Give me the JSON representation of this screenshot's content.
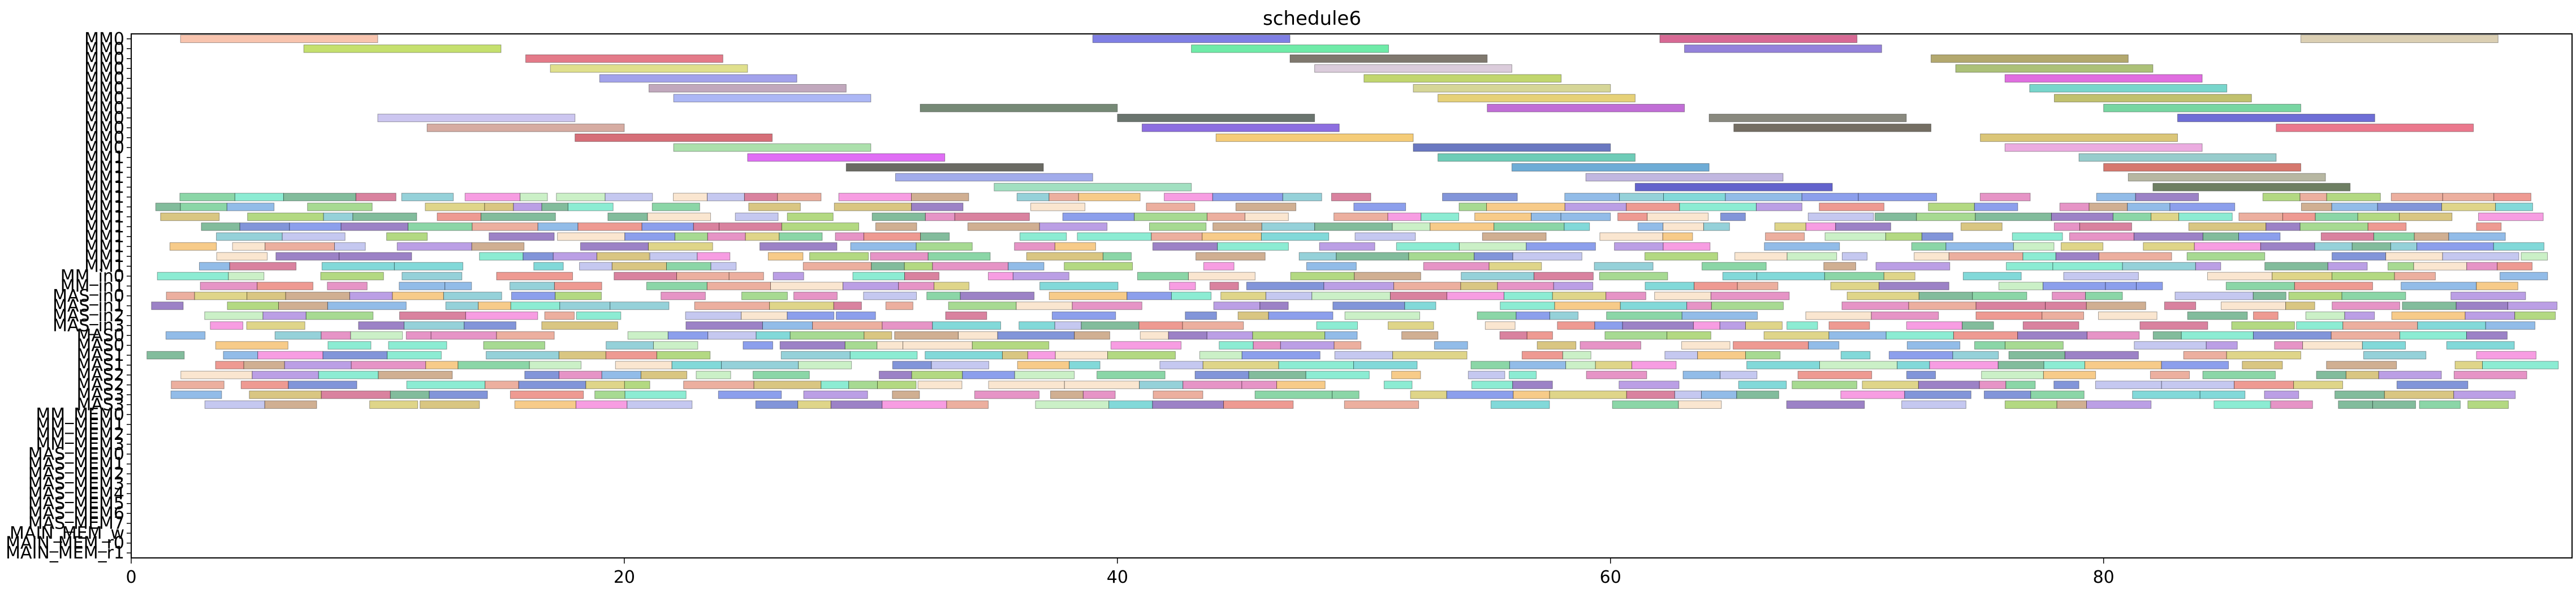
{
  "chart_data": {
    "type": "gantt",
    "title": "schedule6",
    "xlabel": "",
    "ylabel": "",
    "xlim": [
      0,
      99
    ],
    "xticks": [
      0,
      20,
      40,
      60,
      80
    ],
    "grid": false,
    "rows": [
      "MM0",
      "MM0",
      "MM0",
      "MM0",
      "MM0",
      "MM0",
      "MM0",
      "MM0",
      "MM0",
      "MM0",
      "MM0",
      "MM0",
      "MM1",
      "MM1",
      "MM1",
      "MM1",
      "MM1",
      "MM1",
      "MM1",
      "MM1",
      "MM1",
      "MM1",
      "MM1",
      "MM1",
      "MM_in0",
      "MM_in1",
      "MAS_in0",
      "MAS_in1",
      "MAS_in2",
      "MAS_in3",
      "MAS0",
      "MAS0",
      "MAS1",
      "MAS1",
      "MAS2",
      "MAS2",
      "MAS3",
      "MAS3",
      "MM_MEM0",
      "MM_MEM1",
      "MM_MEM2",
      "MM_MEM3",
      "MAS_MEM0",
      "MAS_MEM1",
      "MAS_MEM2",
      "MAS_MEM3",
      "MAS_MEM4",
      "MAS_MEM5",
      "MAS_MEM6",
      "MAS_MEM7",
      "MAIN_MEM_w",
      "MAIN_MEM_r0",
      "MAIN_MEM_r1"
    ],
    "bars": [
      {
        "row": 0,
        "start": 2,
        "end": 10,
        "color": "#f4a582"
      },
      {
        "row": 0,
        "start": 39,
        "end": 47,
        "color": "#3a3ad6"
      },
      {
        "row": 0,
        "start": 62,
        "end": 70,
        "color": "#c2185b"
      },
      {
        "row": 0,
        "start": 88,
        "end": 96,
        "color": "#c8b68a"
      },
      {
        "row": 1,
        "start": 7,
        "end": 15,
        "color": "#a6d020"
      },
      {
        "row": 1,
        "start": 43,
        "end": 51,
        "color": "#22e07a"
      },
      {
        "row": 1,
        "start": 63,
        "end": 71,
        "color": "#5b3fc8"
      },
      {
        "row": 2,
        "start": 16,
        "end": 24,
        "color": "#d6334a"
      },
      {
        "row": 2,
        "start": 47,
        "end": 55,
        "color": "#3b3020"
      },
      {
        "row": 2,
        "start": 73,
        "end": 81,
        "color": "#8a7a20"
      },
      {
        "row": 3,
        "start": 17,
        "end": 25,
        "color": "#cfcf50"
      },
      {
        "row": 3,
        "start": 48,
        "end": 56,
        "color": "#c8b0c8"
      },
      {
        "row": 3,
        "start": 74,
        "end": 82,
        "color": "#7fa030"
      },
      {
        "row": 4,
        "start": 19,
        "end": 27,
        "color": "#7070e0"
      },
      {
        "row": 4,
        "start": 50,
        "end": 58,
        "color": "#a0c020"
      },
      {
        "row": 4,
        "start": 76,
        "end": 84,
        "color": "#d020d0"
      },
      {
        "row": 5,
        "start": 21,
        "end": 29,
        "color": "#a07a9a"
      },
      {
        "row": 5,
        "start": 52,
        "end": 60,
        "color": "#c0c060"
      },
      {
        "row": 5,
        "start": 77,
        "end": 85,
        "color": "#30c0b0"
      },
      {
        "row": 6,
        "start": 22,
        "end": 30,
        "color": "#8090f0"
      },
      {
        "row": 6,
        "start": 53,
        "end": 61,
        "color": "#d8b830"
      },
      {
        "row": 6,
        "start": 78,
        "end": 86,
        "color": "#a0a020"
      },
      {
        "row": 7,
        "start": 32,
        "end": 40,
        "color": "#2d4a2d"
      },
      {
        "row": 7,
        "start": 55,
        "end": 63,
        "color": "#a020c0"
      },
      {
        "row": 7,
        "start": 80,
        "end": 88,
        "color": "#30c070"
      },
      {
        "row": 8,
        "start": 10,
        "end": 18,
        "color": "#b0a8e8"
      },
      {
        "row": 8,
        "start": 40,
        "end": 48,
        "color": "#1a2a20"
      },
      {
        "row": 8,
        "start": 64,
        "end": 72,
        "color": "#4a4a3a"
      },
      {
        "row": 8,
        "start": 83,
        "end": 91,
        "color": "#2020c0"
      },
      {
        "row": 9,
        "start": 12,
        "end": 20,
        "color": "#c08070"
      },
      {
        "row": 9,
        "start": 41,
        "end": 49,
        "color": "#5020d0"
      },
      {
        "row": 9,
        "start": 65,
        "end": 73,
        "color": "#2a2010"
      },
      {
        "row": 9,
        "start": 87,
        "end": 95,
        "color": "#e03050"
      },
      {
        "row": 10,
        "start": 18,
        "end": 26,
        "color": "#c02030"
      },
      {
        "row": 10,
        "start": 44,
        "end": 52,
        "color": "#f0b030"
      },
      {
        "row": 10,
        "start": 75,
        "end": 83,
        "color": "#c8a830"
      },
      {
        "row": 11,
        "start": 22,
        "end": 30,
        "color": "#80d080"
      },
      {
        "row": 11,
        "start": 52,
        "end": 60,
        "color": "#1a30a0"
      },
      {
        "row": 11,
        "start": 76,
        "end": 84,
        "color": "#e080d0"
      },
      {
        "row": 12,
        "start": 25,
        "end": 33,
        "color": "#d020f0"
      },
      {
        "row": 12,
        "start": 53,
        "end": 61,
        "color": "#20b090"
      },
      {
        "row": 12,
        "start": 79,
        "end": 87,
        "color": "#60b0b0"
      },
      {
        "row": 13,
        "start": 29,
        "end": 37,
        "color": "#1a1a10"
      },
      {
        "row": 13,
        "start": 56,
        "end": 64,
        "color": "#2080c0"
      },
      {
        "row": 13,
        "start": 80,
        "end": 88,
        "color": "#c03020"
      },
      {
        "row": 14,
        "start": 31,
        "end": 39,
        "color": "#7080e0"
      },
      {
        "row": 14,
        "start": 59,
        "end": 67,
        "color": "#a090d0"
      },
      {
        "row": 14,
        "start": 81,
        "end": 89,
        "color": "#909070"
      },
      {
        "row": 15,
        "start": 35,
        "end": 43,
        "color": "#70d0a0"
      },
      {
        "row": 15,
        "start": 61,
        "end": 69,
        "color": "#1010b0"
      },
      {
        "row": 15,
        "start": 82,
        "end": 90,
        "color": "#203a10"
      }
    ],
    "row_fills": [
      {
        "row": 16,
        "color": "#4080c0"
      },
      {
        "row": 17,
        "color": "#c0a040"
      },
      {
        "row": 18,
        "color": "#40c080"
      },
      {
        "row": 19,
        "color": "#c04080"
      },
      {
        "row": 20,
        "color": "#8040c0"
      },
      {
        "row": 21,
        "color": "#40a0c0"
      },
      {
        "row": 22,
        "color": "#c0c040"
      },
      {
        "row": 23,
        "color": "#e06040"
      },
      {
        "row": 24,
        "color": "#60c040"
      },
      {
        "row": 25,
        "color": "#a06040"
      },
      {
        "row": 26,
        "color": "#4060e0"
      },
      {
        "row": 27,
        "color": "#e040a0"
      },
      {
        "row": 28,
        "color": "#40e0c0"
      },
      {
        "row": 29,
        "color": "#a0a0e0"
      },
      {
        "row": 30,
        "color": "#30a060"
      },
      {
        "row": 31,
        "color": "#d08030"
      },
      {
        "row": 32,
        "color": "#6030a0"
      },
      {
        "row": 33,
        "color": "#30c0c0"
      },
      {
        "row": 34,
        "color": "#c03060"
      },
      {
        "row": 35,
        "color": "#80c030"
      },
      {
        "row": 36,
        "color": "#3050c0"
      },
      {
        "row": 37,
        "color": "#c0a030"
      }
    ]
  }
}
